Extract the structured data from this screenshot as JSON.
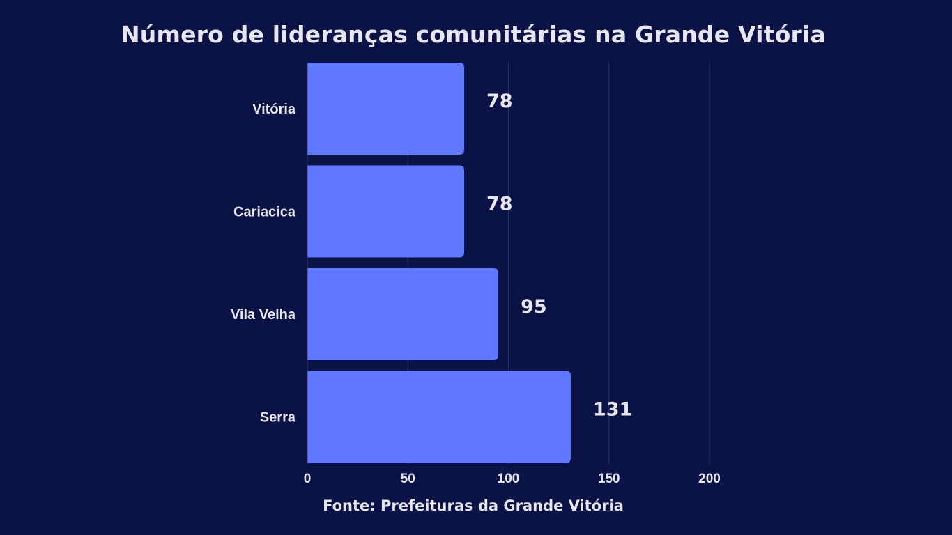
{
  "chart_data": {
    "type": "bar",
    "orientation": "horizontal",
    "title": "Número de lideranças comunitárias na Grande Vitória",
    "source": "Fonte: Prefeituras da Grande Vitória",
    "categories": [
      "Vitória",
      "Cariacica",
      "Vila Velha",
      "Serra"
    ],
    "values": [
      78,
      78,
      95,
      131
    ],
    "value_labels": [
      "78",
      "78",
      "95",
      "131"
    ],
    "xlim": [
      0,
      200
    ],
    "x_ticks": [
      0,
      50,
      100,
      150,
      200
    ],
    "x_tick_labels": [
      "0",
      "50",
      "100",
      "150",
      "200"
    ],
    "grid": true,
    "legend": "none"
  },
  "colors": {
    "background": "#0b1246",
    "bar": "#6078ff",
    "text": "#e7e6f2",
    "grid": "#2a3066"
  }
}
